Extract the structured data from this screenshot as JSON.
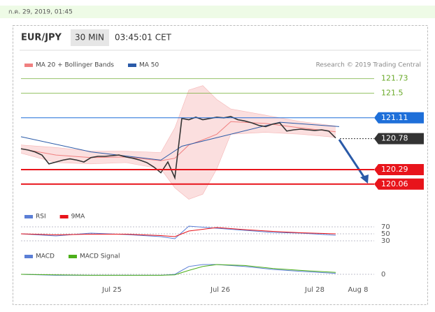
{
  "timestamp": "ก.ค. 29, 2019, 01:45",
  "header": {
    "symbol": "EUR/JPY",
    "interval": "30 MIN",
    "time": "03:45:01 CET"
  },
  "credit": "Research © 2019 Trading Central",
  "chart_data": [
    {
      "type": "line",
      "xlim": [
        0,
        50
      ],
      "ylim": [
        119.77,
        121.87
      ],
      "xticks": [
        {
          "value": 13,
          "label": "Jul 25"
        },
        {
          "value": 28.5,
          "label": "Jul 26"
        },
        {
          "value": 42,
          "label": "Jul 28"
        },
        {
          "value": 48.2,
          "label": "Aug 8"
        }
      ],
      "series": [
        {
          "name": "MA 20 + Bollinger Bands",
          "color": "#f08080",
          "x": [
            0,
            5,
            10,
            15,
            20,
            22,
            24,
            26,
            28,
            30,
            35,
            40,
            45
          ],
          "values": [
            120.62,
            120.52,
            120.48,
            120.49,
            120.43,
            120.47,
            120.68,
            120.76,
            120.85,
            121.05,
            121.02,
            120.95,
            120.89
          ],
          "upper": [
            120.68,
            120.64,
            120.58,
            120.58,
            120.56,
            120.95,
            121.55,
            121.62,
            121.4,
            121.25,
            121.15,
            121.05,
            120.98
          ],
          "lower": [
            120.55,
            120.4,
            120.38,
            120.4,
            120.3,
            120.0,
            119.82,
            119.9,
            120.3,
            120.85,
            120.88,
            120.85,
            120.8
          ]
        },
        {
          "name": "MA 50",
          "color": "#2a5aa8",
          "x": [
            0,
            10,
            20,
            23,
            37,
            45.5
          ],
          "values": [
            120.81,
            120.57,
            120.44,
            120.66,
            121.04,
            120.97
          ]
        },
        {
          "color": "#333333",
          "x": [
            0,
            1,
            2,
            3,
            4,
            5,
            6,
            7,
            8,
            9,
            10,
            11,
            12,
            13,
            14,
            15,
            16,
            17,
            18,
            19,
            20,
            21,
            22,
            23,
            24,
            25,
            26,
            27,
            28,
            29,
            30,
            31,
            32,
            33,
            34,
            35,
            36,
            37,
            38,
            39,
            40,
            41,
            42,
            43,
            44,
            45
          ],
          "values": [
            120.62,
            120.6,
            120.57,
            120.52,
            120.38,
            120.41,
            120.44,
            120.46,
            120.44,
            120.41,
            120.48,
            120.5,
            120.5,
            120.51,
            120.52,
            120.49,
            120.47,
            120.44,
            120.4,
            120.33,
            120.24,
            120.41,
            120.16,
            121.1,
            121.08,
            121.12,
            121.08,
            121.1,
            121.12,
            121.11,
            121.13,
            121.08,
            121.06,
            121.03,
            120.99,
            120.97,
            121.01,
            121.03,
            120.9,
            120.92,
            120.93,
            120.92,
            120.91,
            120.92,
            120.9,
            120.79
          ]
        }
      ],
      "levels": [
        {
          "value": 121.73,
          "color": "#6aaa2a",
          "filled": false,
          "style": "solid"
        },
        {
          "value": 121.5,
          "color": "#6aaa2a",
          "filled": false,
          "style": "solid"
        },
        {
          "value": 121.11,
          "color": "#1e6fd9",
          "filled": true,
          "style": "solid"
        },
        {
          "value": 120.78,
          "color": "#333333",
          "filled": true,
          "style": "dotted"
        },
        {
          "value": 120.29,
          "color": "#e8141b",
          "filled": true,
          "style": "solid"
        },
        {
          "value": 120.06,
          "color": "#e8141b",
          "filled": true,
          "style": "solid"
        }
      ]
    },
    {
      "type": "line",
      "xlim": [
        0,
        50
      ],
      "ylim": [
        24,
        84
      ],
      "yticks": [
        70,
        50,
        30
      ],
      "series": [
        {
          "name": "RSI",
          "color": "#5b7fd6",
          "x": [
            0,
            5,
            10,
            15,
            20,
            22,
            24,
            28,
            32,
            36,
            40,
            45
          ],
          "values": [
            50,
            44,
            52,
            48,
            42,
            36,
            72,
            66,
            60,
            54,
            52,
            46
          ]
        },
        {
          "name": "9MA",
          "color": "#e8141b",
          "x": [
            0,
            5,
            10,
            15,
            20,
            22,
            24,
            28,
            32,
            36,
            40,
            45
          ],
          "values": [
            50,
            47,
            49,
            49,
            45,
            42,
            58,
            68,
            62,
            57,
            53,
            50
          ]
        }
      ]
    },
    {
      "type": "line",
      "xlim": [
        0,
        50
      ],
      "ylim": [
        -0.05,
        0.2
      ],
      "yticks": [
        0
      ],
      "series": [
        {
          "name": "MACD",
          "color": "#5b7fd6",
          "x": [
            0,
            5,
            10,
            15,
            20,
            22,
            24,
            26,
            28,
            32,
            36,
            40,
            45
          ],
          "values": [
            0,
            -0.01,
            -0.01,
            -0.01,
            -0.01,
            0,
            0.08,
            0.1,
            0.1,
            0.08,
            0.05,
            0.03,
            0.01
          ]
        },
        {
          "name": "MACD Signal",
          "color": "#4caf1a",
          "x": [
            0,
            5,
            10,
            15,
            20,
            22,
            24,
            26,
            28,
            32,
            36,
            40,
            45
          ],
          "values": [
            0,
            -0.005,
            -0.01,
            -0.01,
            -0.01,
            -0.005,
            0.04,
            0.08,
            0.1,
            0.09,
            0.06,
            0.04,
            0.02
          ]
        }
      ]
    }
  ]
}
